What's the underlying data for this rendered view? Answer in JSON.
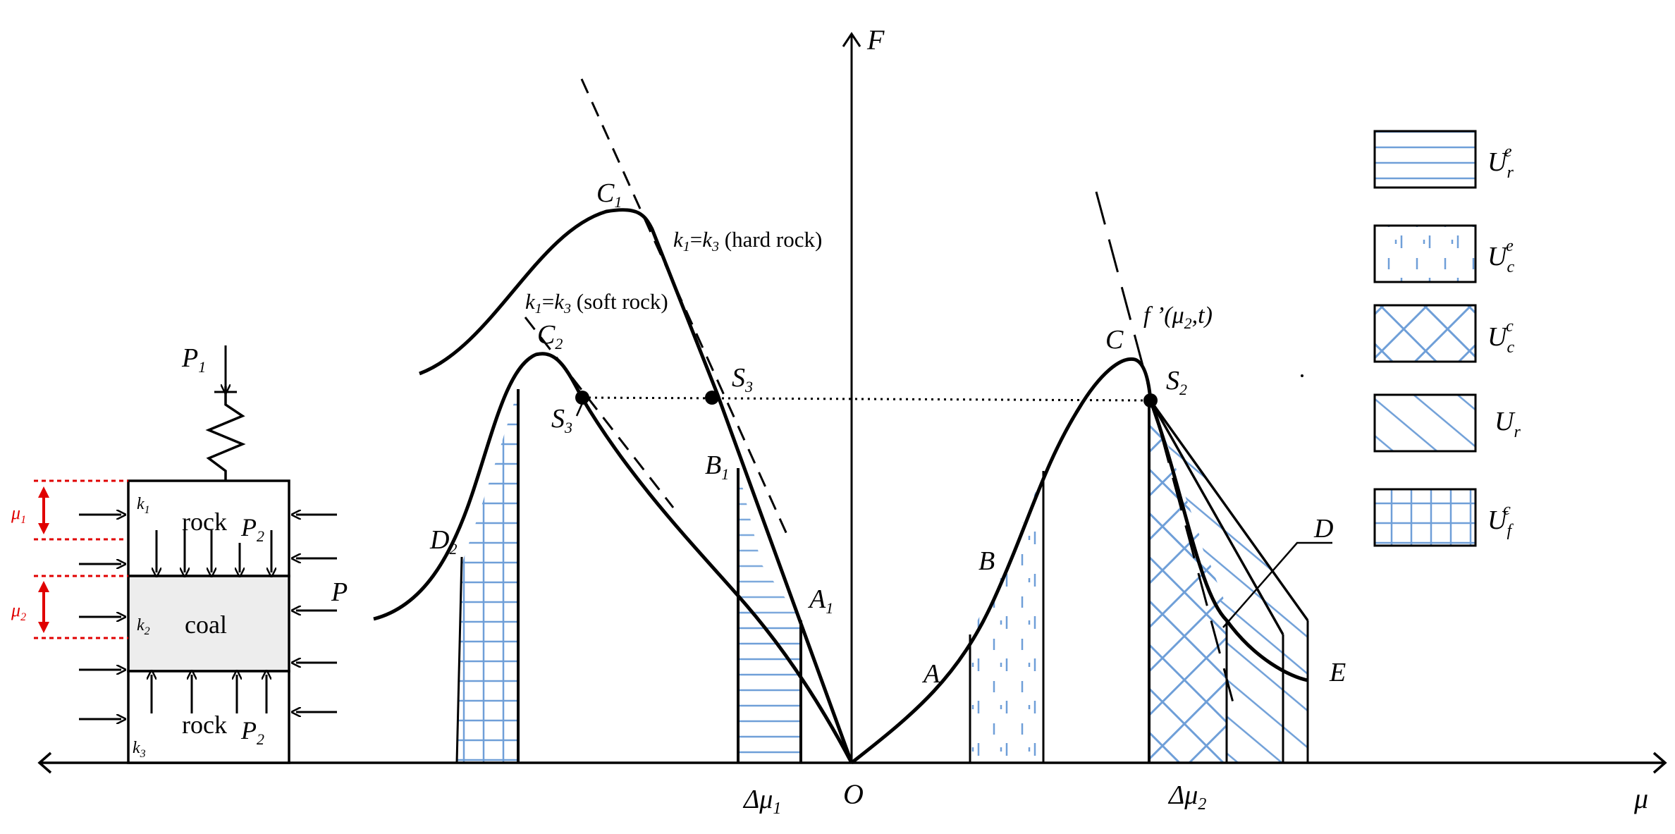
{
  "axes": {
    "f_label": "F",
    "mu_label": "μ",
    "origin_label": "O",
    "dmu1_label": "Δμ",
    "dmu1_sub": "1",
    "dmu2_label": "Δμ",
    "dmu2_sub": "2"
  },
  "left_curves": {
    "c1_label": "C",
    "c1_sub": "1",
    "c2_label": "C",
    "c2_sub": "2",
    "d2_label": "D",
    "d2_sub": "2",
    "s3_upper_label": "S",
    "s3_upper_sub": "3",
    "s3_lower_label": "S",
    "s3_lower_sub": "3",
    "b1_label": "B",
    "b1_sub": "1",
    "a1_label": "A",
    "a1_sub": "1",
    "hard_rock": {
      "k1": "k",
      "k1_sub": "1",
      "eq": "=",
      "k3": "k",
      "k3_sub": "3",
      "text": " (hard rock)"
    },
    "soft_rock": {
      "k1": "k",
      "k1_sub": "1",
      "eq": "=",
      "k3": "k",
      "k3_sub": "3",
      "text": " (soft rock)"
    }
  },
  "right_curve": {
    "c_label": "C",
    "s2_label": "S",
    "s2_sub": "2",
    "b_label": "B",
    "a_label": "A",
    "d_label": "D",
    "e_label": "E",
    "f_prime": "f ’(μ",
    "f_prime_sub": "2",
    "f_prime_tail": ",t)"
  },
  "model": {
    "p1_label": "P",
    "p1_sub": "1",
    "p_label": "P",
    "rock_top": "rock",
    "rock_bottom": "rock",
    "coal": "coal",
    "p2_top": "P",
    "p2_top_sub": "2",
    "p2_bottom": "P",
    "p2_bottom_sub": "2",
    "k1": "k",
    "k1_sub": "1",
    "k2": "k",
    "k2_sub": "2",
    "k3": "k",
    "k3_sub": "3",
    "mu1": "μ",
    "mu1_sub": "1",
    "mu2": "μ",
    "mu2_sub": "2"
  },
  "legend": [
    {
      "base": "U",
      "sub": "r",
      "sup": "e",
      "pattern": "horizontal-lines"
    },
    {
      "base": "U",
      "sub": "c",
      "sup": "e",
      "pattern": "dashes"
    },
    {
      "base": "U",
      "sub": "c",
      "sup": "c",
      "pattern": "cross-hatch"
    },
    {
      "base": "U",
      "sub": "r",
      "sup": "",
      "pattern": "diagonal-lines"
    },
    {
      "base": "U",
      "sub": "f",
      "sup": "c",
      "pattern": "grid"
    }
  ],
  "colors": {
    "hatch": "#6f9fd8",
    "line": "#000000",
    "coal_fill": "#ededed",
    "marker": "#e00000"
  }
}
